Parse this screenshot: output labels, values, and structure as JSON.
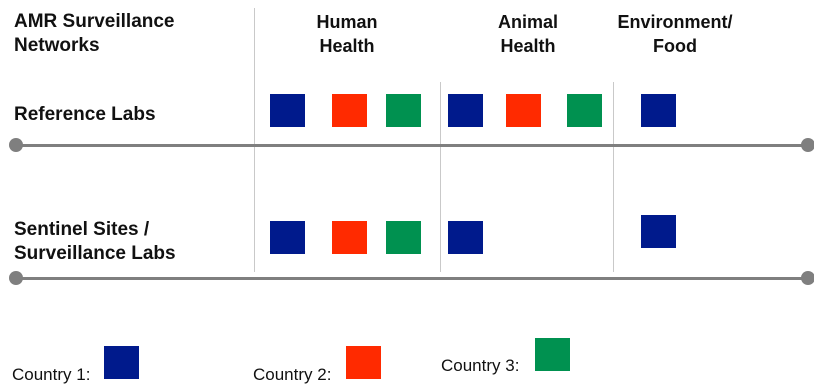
{
  "header": {
    "networks_title": "AMR Surveillance\nNetworks",
    "columns": [
      {
        "label": "Human\nHealth"
      },
      {
        "label": "Animal\nHealth"
      },
      {
        "label": "Environment/\nFood"
      }
    ]
  },
  "rows": [
    {
      "label": "Reference Labs"
    },
    {
      "label": "Sentinel Sites /\nSurveillance Labs"
    }
  ],
  "legend": [
    {
      "label": "Country 1:",
      "color": "#001a8c"
    },
    {
      "label": "Country 2:",
      "color": "#ff2a00"
    },
    {
      "label": "Country 3:",
      "color": "#009150"
    }
  ]
}
